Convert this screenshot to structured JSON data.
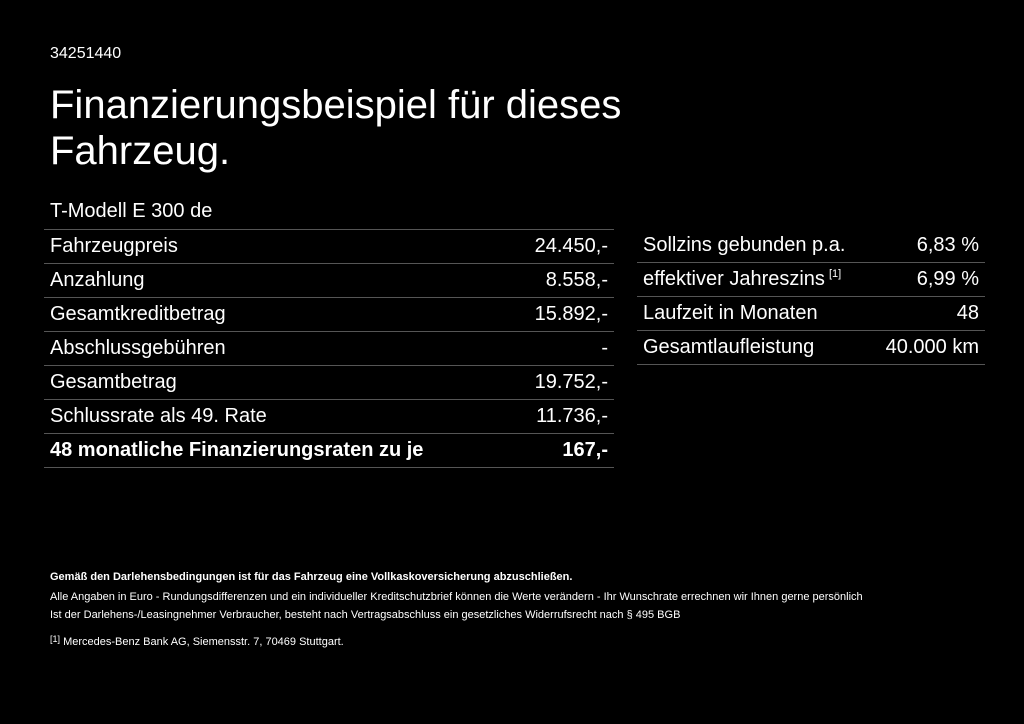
{
  "header": {
    "id": "34251440",
    "title": "Finanzierungsbeispiel für dieses Fahrzeug.",
    "model": "T-Modell E 300 de"
  },
  "left_table": {
    "rows": [
      [
        "Fahrzeugpreis",
        "24.450,-"
      ],
      [
        "Anzahlung",
        "8.558,-"
      ],
      [
        "Gesamtkreditbetrag",
        "15.892,-"
      ],
      [
        "Abschlussgebühren",
        "-"
      ],
      [
        "Gesamtbetrag",
        "19.752,-"
      ],
      [
        "Schlussrate als 49. Rate",
        "11.736,-"
      ],
      [
        "48 monatliche Finanzierungsraten zu je",
        "167,-"
      ]
    ]
  },
  "right_table": {
    "rows": [
      {
        "label": "Sollzins gebunden p.a.",
        "value": "6,83 %"
      },
      {
        "label": "effektiver Jahreszins",
        "note": "[1]",
        "value": "6,99 %"
      },
      {
        "label": "Laufzeit in Monaten",
        "value": "48"
      },
      {
        "label": "Gesamtlaufleistung",
        "value": "40.000 km"
      }
    ]
  },
  "footer": {
    "insurance_note": "Gemäß den Darlehensbedingungen ist für das Fahrzeug eine Vollkaskoversicherung abzuschließen.",
    "lines": [
      "Alle Angaben in Euro - Rundungsdifferenzen und ein individueller Kreditschutzbrief können die Werte verändern - Ihr Wunschrate errechnen wir Ihnen gerne persönlich",
      "Ist der Darlehens-/Leasingnehmer Verbraucher, besteht nach Vertragsabschluss ein gesetzliches Widerrufsrecht nach § 495 BGB"
    ],
    "footnote": {
      "mark": "[1]",
      "text": "Mercedes-Benz Bank AG, Siemensstr. 7, 70469 Stuttgart."
    }
  }
}
